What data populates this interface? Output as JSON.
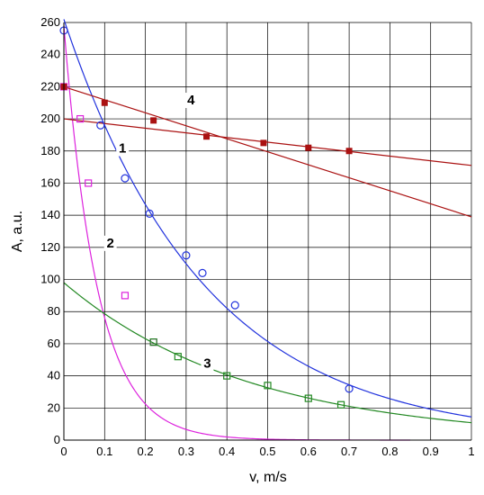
{
  "chart_data": {
    "type": "scatter",
    "xlabel": "v, m/s",
    "ylabel": "A, a.u.",
    "xlim": [
      0,
      1
    ],
    "ylim": [
      0,
      260
    ],
    "x_ticks": [
      "0",
      "0.1",
      "0.2",
      "0.3",
      "0.4",
      "0.5",
      "0.6",
      "0.7",
      "0.8",
      "0.9",
      "1"
    ],
    "y_ticks": [
      "0",
      "20",
      "40",
      "60",
      "80",
      "100",
      "120",
      "140",
      "160",
      "180",
      "200",
      "220",
      "240",
      "260"
    ],
    "grid": true,
    "series": [
      {
        "label": "1",
        "color": "#2233dd",
        "marker": "circle",
        "points": [
          [
            0.0,
            255
          ],
          [
            0.09,
            196
          ],
          [
            0.15,
            163
          ],
          [
            0.21,
            141
          ],
          [
            0.3,
            115
          ],
          [
            0.34,
            104
          ],
          [
            0.42,
            84
          ],
          [
            0.7,
            32
          ]
        ],
        "fit": {
          "kind": "exp",
          "a": 262,
          "k": 2.9
        }
      },
      {
        "label": "2",
        "color": "#dd22dd",
        "marker": "square-open",
        "points": [
          [
            0.0,
            220
          ],
          [
            0.04,
            200
          ],
          [
            0.06,
            160
          ],
          [
            0.15,
            90
          ],
          [
            0.22,
            61
          ]
        ],
        "fit": {
          "kind": "exp",
          "a": 258,
          "k": 12.2,
          "xmax": 0.85
        }
      },
      {
        "label": "3",
        "color": "#228822",
        "marker": "square-open",
        "points": [
          [
            0.22,
            61
          ],
          [
            0.28,
            52
          ],
          [
            0.4,
            40
          ],
          [
            0.5,
            34
          ],
          [
            0.6,
            26
          ],
          [
            0.68,
            22
          ]
        ],
        "fit": {
          "kind": "exp",
          "a": 98,
          "k": 2.2
        }
      },
      {
        "label": "4",
        "color": "#aa1111",
        "marker": "square",
        "points": [
          [
            0.0,
            220
          ],
          [
            0.1,
            210
          ],
          [
            0.22,
            199
          ],
          [
            0.35,
            189
          ],
          [
            0.49,
            185
          ],
          [
            0.6,
            182
          ],
          [
            0.7,
            180
          ]
        ],
        "fits": [
          {
            "kind": "linear",
            "x0": 0,
            "y0": 220,
            "x1": 1,
            "y1": 139
          },
          {
            "kind": "linear",
            "x0": 0,
            "y0": 200,
            "x1": 1,
            "y1": 171
          }
        ]
      }
    ]
  }
}
